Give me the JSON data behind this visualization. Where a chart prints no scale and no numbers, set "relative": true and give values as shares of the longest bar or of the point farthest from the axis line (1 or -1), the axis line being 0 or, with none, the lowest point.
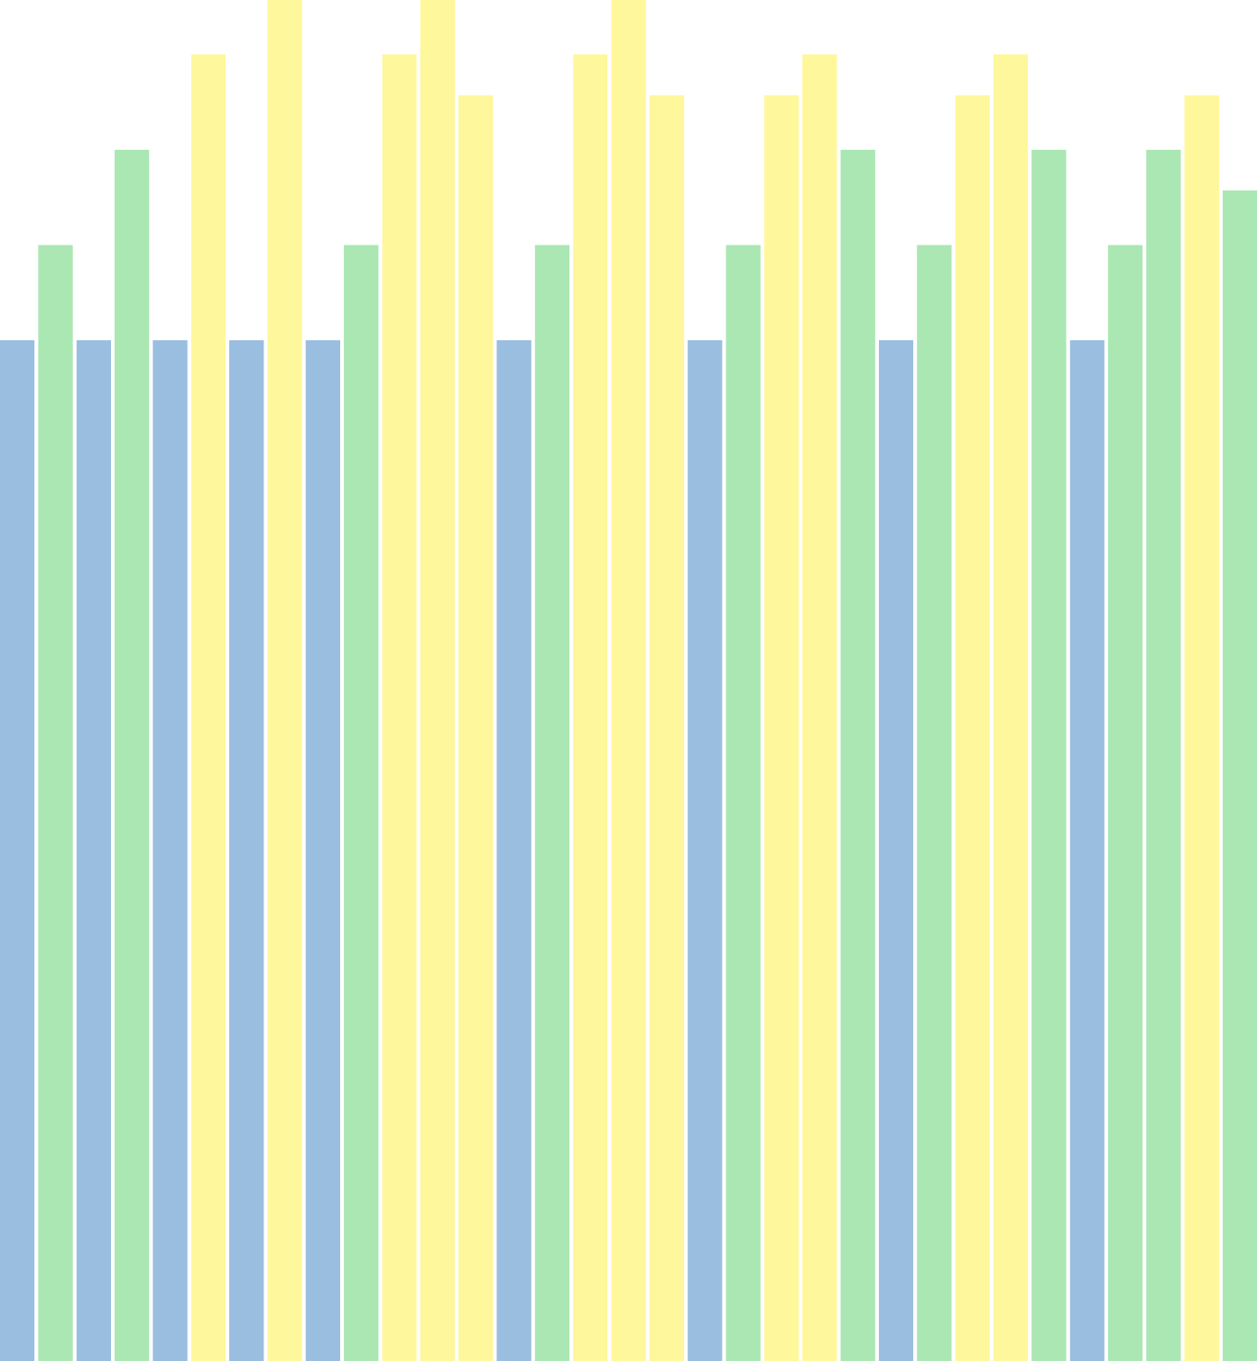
{
  "chart_data": {
    "type": "bar",
    "relative": true,
    "categories": [
      null,
      null,
      null,
      null,
      null,
      null,
      null,
      null,
      null,
      null,
      null,
      null,
      null,
      null,
      null,
      null,
      null,
      null,
      null,
      null,
      null,
      null,
      null,
      null,
      null,
      null,
      null,
      null,
      null,
      null,
      null,
      null,
      null
    ],
    "values": [
      0.75,
      0.82,
      0.75,
      0.89,
      0.75,
      0.96,
      0.75,
      1,
      0.75,
      0.82,
      0.96,
      1,
      0.93,
      0.75,
      0.82,
      0.96,
      1,
      0.93,
      0.75,
      0.82,
      0.93,
      0.96,
      0.89,
      0.75,
      0.82,
      0.93,
      0.96,
      0.89,
      0.75,
      0.82,
      0.89,
      0.93,
      0.86
    ],
    "colors": [
      "#9abee0",
      "#abe7b3",
      "#9abee0",
      "#abe7b3",
      "#9abee0",
      "#fff79b",
      "#9abee0",
      "#fff79b",
      "#9abee0",
      "#abe7b3",
      "#fff79b",
      "#fff79b",
      "#fff79b",
      "#9abee0",
      "#abe7b3",
      "#fff79b",
      "#fff79b",
      "#fff79b",
      "#9abee0",
      "#abe7b3",
      "#fff79b",
      "#fff79b",
      "#abe7b3",
      "#9abee0",
      "#abe7b3",
      "#fff79b",
      "#fff79b",
      "#abe7b3",
      "#9abee0",
      "#abe7b3",
      "#abe7b3",
      "#fff79b",
      "#abe7b3"
    ]
  }
}
